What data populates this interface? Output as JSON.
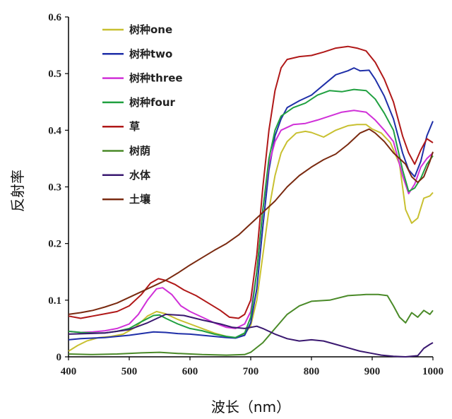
{
  "chart_data": {
    "type": "line",
    "xlabel": "波长（nm）",
    "ylabel": "反射率",
    "xlim": [
      400,
      1000
    ],
    "ylim": [
      0,
      0.6
    ],
    "xticks": [
      "400",
      "500",
      "600",
      "700",
      "800",
      "900",
      "1000"
    ],
    "yticks": [
      "0",
      "0.1",
      "0.2",
      "0.3",
      "0.4",
      "0.5",
      "0.6"
    ],
    "grid": false,
    "legend_position": "top-left",
    "series": [
      {
        "name": "树种one",
        "color": "#c8c030",
        "points": [
          [
            400,
            0.01
          ],
          [
            415,
            0.02
          ],
          [
            430,
            0.028
          ],
          [
            450,
            0.034
          ],
          [
            470,
            0.036
          ],
          [
            490,
            0.04
          ],
          [
            510,
            0.052
          ],
          [
            530,
            0.072
          ],
          [
            545,
            0.08
          ],
          [
            560,
            0.076
          ],
          [
            580,
            0.066
          ],
          [
            600,
            0.058
          ],
          [
            620,
            0.05
          ],
          [
            640,
            0.042
          ],
          [
            660,
            0.036
          ],
          [
            675,
            0.033
          ],
          [
            690,
            0.04
          ],
          [
            700,
            0.055
          ],
          [
            710,
            0.1
          ],
          [
            720,
            0.18
          ],
          [
            730,
            0.26
          ],
          [
            740,
            0.32
          ],
          [
            750,
            0.36
          ],
          [
            760,
            0.38
          ],
          [
            775,
            0.395
          ],
          [
            790,
            0.398
          ],
          [
            800,
            0.396
          ],
          [
            820,
            0.388
          ],
          [
            840,
            0.4
          ],
          [
            860,
            0.408
          ],
          [
            875,
            0.41
          ],
          [
            890,
            0.41
          ],
          [
            900,
            0.402
          ],
          [
            915,
            0.395
          ],
          [
            930,
            0.378
          ],
          [
            945,
            0.34
          ],
          [
            955,
            0.26
          ],
          [
            965,
            0.236
          ],
          [
            975,
            0.245
          ],
          [
            985,
            0.28
          ],
          [
            995,
            0.284
          ],
          [
            1000,
            0.29
          ]
        ]
      },
      {
        "name": "树种two",
        "color": "#1f2fa8",
        "points": [
          [
            400,
            0.03
          ],
          [
            420,
            0.032
          ],
          [
            440,
            0.033
          ],
          [
            460,
            0.034
          ],
          [
            480,
            0.036
          ],
          [
            500,
            0.038
          ],
          [
            520,
            0.041
          ],
          [
            540,
            0.044
          ],
          [
            560,
            0.043
          ],
          [
            580,
            0.041
          ],
          [
            600,
            0.04
          ],
          [
            620,
            0.038
          ],
          [
            640,
            0.036
          ],
          [
            660,
            0.034
          ],
          [
            675,
            0.033
          ],
          [
            690,
            0.038
          ],
          [
            700,
            0.06
          ],
          [
            710,
            0.12
          ],
          [
            720,
            0.23
          ],
          [
            730,
            0.33
          ],
          [
            740,
            0.39
          ],
          [
            750,
            0.42
          ],
          [
            760,
            0.44
          ],
          [
            780,
            0.452
          ],
          [
            800,
            0.462
          ],
          [
            820,
            0.48
          ],
          [
            840,
            0.498
          ],
          [
            860,
            0.505
          ],
          [
            870,
            0.51
          ],
          [
            880,
            0.505
          ],
          [
            895,
            0.506
          ],
          [
            905,
            0.49
          ],
          [
            920,
            0.46
          ],
          [
            935,
            0.42
          ],
          [
            950,
            0.36
          ],
          [
            960,
            0.33
          ],
          [
            970,
            0.318
          ],
          [
            980,
            0.345
          ],
          [
            990,
            0.39
          ],
          [
            1000,
            0.416
          ]
        ]
      },
      {
        "name": "树种three",
        "color": "#d030d8",
        "points": [
          [
            400,
            0.045
          ],
          [
            420,
            0.043
          ],
          [
            440,
            0.044
          ],
          [
            460,
            0.046
          ],
          [
            480,
            0.05
          ],
          [
            500,
            0.058
          ],
          [
            515,
            0.075
          ],
          [
            530,
            0.1
          ],
          [
            545,
            0.12
          ],
          [
            555,
            0.122
          ],
          [
            570,
            0.11
          ],
          [
            585,
            0.09
          ],
          [
            600,
            0.08
          ],
          [
            620,
            0.07
          ],
          [
            640,
            0.06
          ],
          [
            660,
            0.052
          ],
          [
            675,
            0.05
          ],
          [
            690,
            0.058
          ],
          [
            700,
            0.08
          ],
          [
            710,
            0.15
          ],
          [
            720,
            0.26
          ],
          [
            730,
            0.34
          ],
          [
            740,
            0.38
          ],
          [
            750,
            0.4
          ],
          [
            770,
            0.41
          ],
          [
            790,
            0.412
          ],
          [
            810,
            0.418
          ],
          [
            830,
            0.425
          ],
          [
            850,
            0.432
          ],
          [
            870,
            0.435
          ],
          [
            890,
            0.432
          ],
          [
            905,
            0.418
          ],
          [
            920,
            0.4
          ],
          [
            935,
            0.38
          ],
          [
            950,
            0.32
          ],
          [
            960,
            0.288
          ],
          [
            970,
            0.305
          ],
          [
            980,
            0.335
          ],
          [
            990,
            0.35
          ],
          [
            1000,
            0.36
          ]
        ]
      },
      {
        "name": "树种four",
        "color": "#20a040",
        "points": [
          [
            400,
            0.045
          ],
          [
            420,
            0.043
          ],
          [
            440,
            0.042
          ],
          [
            460,
            0.042
          ],
          [
            480,
            0.045
          ],
          [
            500,
            0.05
          ],
          [
            520,
            0.062
          ],
          [
            540,
            0.073
          ],
          [
            550,
            0.074
          ],
          [
            560,
            0.068
          ],
          [
            580,
            0.058
          ],
          [
            600,
            0.05
          ],
          [
            620,
            0.046
          ],
          [
            640,
            0.04
          ],
          [
            660,
            0.036
          ],
          [
            675,
            0.034
          ],
          [
            690,
            0.042
          ],
          [
            700,
            0.07
          ],
          [
            710,
            0.15
          ],
          [
            720,
            0.26
          ],
          [
            730,
            0.35
          ],
          [
            740,
            0.4
          ],
          [
            750,
            0.425
          ],
          [
            770,
            0.44
          ],
          [
            790,
            0.448
          ],
          [
            810,
            0.462
          ],
          [
            830,
            0.47
          ],
          [
            850,
            0.468
          ],
          [
            870,
            0.472
          ],
          [
            890,
            0.47
          ],
          [
            905,
            0.455
          ],
          [
            920,
            0.43
          ],
          [
            935,
            0.4
          ],
          [
            950,
            0.33
          ],
          [
            960,
            0.292
          ],
          [
            970,
            0.298
          ],
          [
            980,
            0.315
          ],
          [
            990,
            0.34
          ],
          [
            1000,
            0.355
          ]
        ]
      },
      {
        "name": "草",
        "color": "#b01818",
        "points": [
          [
            400,
            0.072
          ],
          [
            420,
            0.068
          ],
          [
            440,
            0.072
          ],
          [
            460,
            0.076
          ],
          [
            480,
            0.08
          ],
          [
            500,
            0.09
          ],
          [
            520,
            0.11
          ],
          [
            535,
            0.13
          ],
          [
            548,
            0.138
          ],
          [
            560,
            0.135
          ],
          [
            575,
            0.128
          ],
          [
            590,
            0.118
          ],
          [
            610,
            0.108
          ],
          [
            630,
            0.095
          ],
          [
            650,
            0.082
          ],
          [
            665,
            0.07
          ],
          [
            680,
            0.068
          ],
          [
            690,
            0.075
          ],
          [
            700,
            0.1
          ],
          [
            710,
            0.18
          ],
          [
            720,
            0.3
          ],
          [
            730,
            0.4
          ],
          [
            740,
            0.47
          ],
          [
            750,
            0.51
          ],
          [
            760,
            0.525
          ],
          [
            780,
            0.53
          ],
          [
            800,
            0.532
          ],
          [
            820,
            0.538
          ],
          [
            840,
            0.545
          ],
          [
            860,
            0.548
          ],
          [
            875,
            0.545
          ],
          [
            890,
            0.54
          ],
          [
            905,
            0.52
          ],
          [
            920,
            0.49
          ],
          [
            935,
            0.45
          ],
          [
            950,
            0.39
          ],
          [
            960,
            0.36
          ],
          [
            970,
            0.34
          ],
          [
            980,
            0.365
          ],
          [
            990,
            0.385
          ],
          [
            1000,
            0.378
          ]
        ]
      },
      {
        "name": "树荫",
        "color": "#4a8a28",
        "points": [
          [
            400,
            0.005
          ],
          [
            440,
            0.004
          ],
          [
            480,
            0.005
          ],
          [
            520,
            0.007
          ],
          [
            550,
            0.008
          ],
          [
            580,
            0.006
          ],
          [
            620,
            0.004
          ],
          [
            660,
            0.003
          ],
          [
            690,
            0.004
          ],
          [
            700,
            0.008
          ],
          [
            720,
            0.025
          ],
          [
            740,
            0.05
          ],
          [
            760,
            0.075
          ],
          [
            780,
            0.09
          ],
          [
            800,
            0.098
          ],
          [
            830,
            0.1
          ],
          [
            860,
            0.108
          ],
          [
            890,
            0.11
          ],
          [
            910,
            0.11
          ],
          [
            925,
            0.108
          ],
          [
            935,
            0.09
          ],
          [
            945,
            0.07
          ],
          [
            955,
            0.06
          ],
          [
            965,
            0.078
          ],
          [
            975,
            0.07
          ],
          [
            985,
            0.082
          ],
          [
            995,
            0.075
          ],
          [
            1000,
            0.082
          ]
        ]
      },
      {
        "name": "水体",
        "color": "#3a1870",
        "points": [
          [
            400,
            0.04
          ],
          [
            430,
            0.041
          ],
          [
            460,
            0.042
          ],
          [
            500,
            0.048
          ],
          [
            530,
            0.06
          ],
          [
            560,
            0.075
          ],
          [
            590,
            0.073
          ],
          [
            620,
            0.065
          ],
          [
            650,
            0.058
          ],
          [
            670,
            0.052
          ],
          [
            690,
            0.05
          ],
          [
            710,
            0.054
          ],
          [
            720,
            0.05
          ],
          [
            740,
            0.04
          ],
          [
            760,
            0.032
          ],
          [
            780,
            0.028
          ],
          [
            800,
            0.03
          ],
          [
            820,
            0.028
          ],
          [
            840,
            0.022
          ],
          [
            860,
            0.016
          ],
          [
            880,
            0.01
          ],
          [
            900,
            0.006
          ],
          [
            915,
            0.003
          ],
          [
            935,
            0.001
          ],
          [
            955,
            0.0
          ],
          [
            975,
            0.002
          ],
          [
            985,
            0.015
          ],
          [
            995,
            0.022
          ],
          [
            1000,
            0.025
          ]
        ]
      },
      {
        "name": "土壤",
        "color": "#7a2a10",
        "points": [
          [
            400,
            0.075
          ],
          [
            420,
            0.078
          ],
          [
            440,
            0.082
          ],
          [
            460,
            0.088
          ],
          [
            480,
            0.095
          ],
          [
            500,
            0.105
          ],
          [
            520,
            0.115
          ],
          [
            540,
            0.125
          ],
          [
            560,
            0.135
          ],
          [
            580,
            0.148
          ],
          [
            600,
            0.162
          ],
          [
            620,
            0.175
          ],
          [
            640,
            0.188
          ],
          [
            660,
            0.2
          ],
          [
            680,
            0.215
          ],
          [
            700,
            0.235
          ],
          [
            720,
            0.255
          ],
          [
            740,
            0.275
          ],
          [
            760,
            0.3
          ],
          [
            780,
            0.32
          ],
          [
            800,
            0.335
          ],
          [
            820,
            0.348
          ],
          [
            840,
            0.358
          ],
          [
            860,
            0.375
          ],
          [
            880,
            0.395
          ],
          [
            895,
            0.402
          ],
          [
            905,
            0.395
          ],
          [
            920,
            0.38
          ],
          [
            935,
            0.36
          ],
          [
            945,
            0.35
          ],
          [
            955,
            0.34
          ],
          [
            965,
            0.318
          ],
          [
            975,
            0.308
          ],
          [
            985,
            0.318
          ],
          [
            995,
            0.345
          ],
          [
            1000,
            0.362
          ]
        ]
      }
    ]
  }
}
